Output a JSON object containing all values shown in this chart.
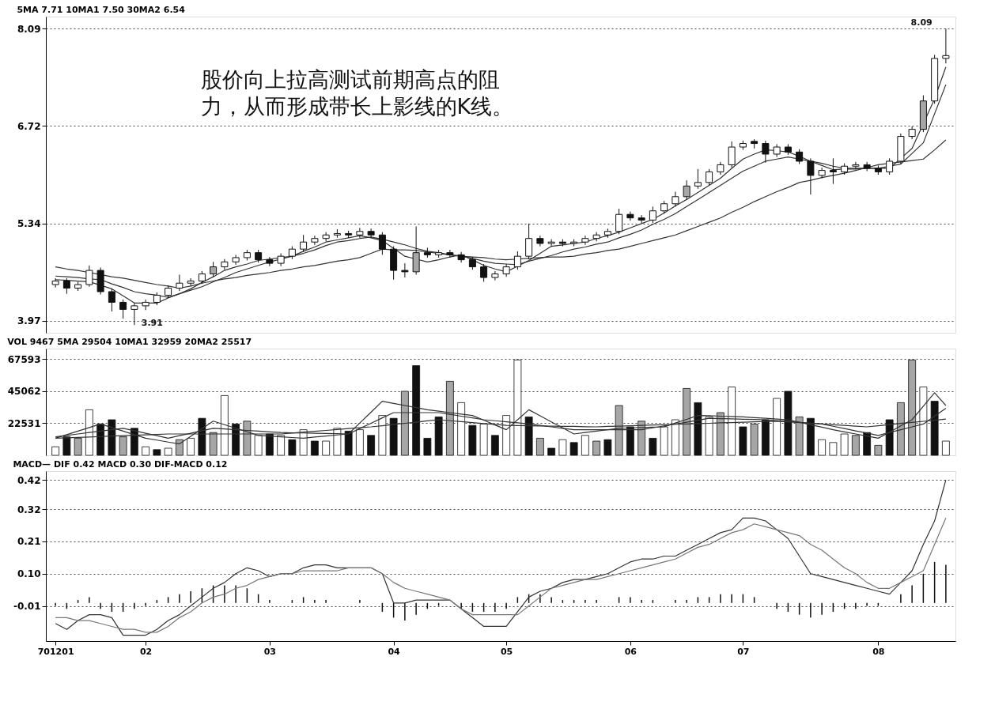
{
  "chart_data": [
    {
      "type": "candlestick",
      "title": "5MA 7.71  10MA1 7.50  30MA2 6.54",
      "categories": [
        "701201",
        null,
        null,
        null,
        null,
        null,
        null,
        null,
        "02",
        null,
        null,
        null,
        null,
        null,
        null,
        null,
        null,
        null,
        null,
        "03",
        null,
        null,
        null,
        null,
        null,
        null,
        null,
        null,
        null,
        null,
        "04",
        null,
        null,
        null,
        null,
        null,
        null,
        null,
        null,
        null,
        "05",
        null,
        null,
        null,
        null,
        null,
        null,
        null,
        null,
        null,
        null,
        "06",
        null,
        null,
        null,
        null,
        null,
        null,
        null,
        null,
        null,
        "07",
        null,
        null,
        null,
        null,
        null,
        null,
        null,
        null,
        null,
        null,
        null,
        "08",
        null,
        null,
        null,
        null,
        null,
        null
      ],
      "ohlc": [
        [
          4.48,
          4.57,
          4.44,
          4.53
        ],
        [
          4.53,
          4.57,
          4.35,
          4.43
        ],
        [
          4.43,
          4.52,
          4.39,
          4.48
        ],
        [
          4.48,
          4.75,
          4.45,
          4.68
        ],
        [
          4.68,
          4.72,
          4.34,
          4.38
        ],
        [
          4.38,
          4.42,
          4.1,
          4.23
        ],
        [
          4.23,
          4.27,
          4.0,
          4.13
        ],
        [
          4.13,
          4.22,
          3.91,
          4.18
        ],
        [
          4.18,
          4.27,
          4.12,
          4.23
        ],
        [
          4.23,
          4.37,
          4.19,
          4.33
        ],
        [
          4.33,
          4.47,
          4.29,
          4.43
        ],
        [
          4.43,
          4.62,
          4.39,
          4.5
        ],
        [
          4.5,
          4.57,
          4.46,
          4.53
        ],
        [
          4.53,
          4.67,
          4.49,
          4.63
        ],
        [
          4.63,
          4.8,
          4.59,
          4.73
        ],
        [
          4.73,
          4.84,
          4.69,
          4.8
        ],
        [
          4.8,
          4.9,
          4.76,
          4.86
        ],
        [
          4.86,
          4.97,
          4.82,
          4.93
        ],
        [
          4.93,
          4.97,
          4.79,
          4.83
        ],
        [
          4.83,
          4.87,
          4.74,
          4.78
        ],
        [
          4.78,
          4.92,
          4.74,
          4.88
        ],
        [
          4.88,
          5.02,
          4.84,
          4.98
        ],
        [
          4.98,
          5.18,
          4.94,
          5.08
        ],
        [
          5.08,
          5.17,
          5.04,
          5.13
        ],
        [
          5.13,
          5.22,
          5.09,
          5.18
        ],
        [
          5.18,
          5.26,
          5.14,
          5.2
        ],
        [
          5.2,
          5.24,
          5.14,
          5.18
        ],
        [
          5.18,
          5.28,
          5.14,
          5.23
        ],
        [
          5.23,
          5.27,
          5.14,
          5.18
        ],
        [
          5.18,
          5.22,
          4.9,
          4.98
        ],
        [
          4.98,
          5.02,
          4.55,
          4.68
        ],
        [
          4.68,
          4.78,
          4.58,
          4.66
        ],
        [
          4.66,
          5.3,
          4.62,
          4.93
        ],
        [
          4.93,
          5.0,
          4.86,
          4.9
        ],
        [
          4.9,
          4.97,
          4.86,
          4.93
        ],
        [
          4.93,
          4.97,
          4.86,
          4.9
        ],
        [
          4.9,
          4.94,
          4.79,
          4.83
        ],
        [
          4.83,
          4.87,
          4.69,
          4.73
        ],
        [
          4.73,
          4.77,
          4.52,
          4.58
        ],
        [
          4.58,
          4.67,
          4.54,
          4.63
        ],
        [
          4.63,
          4.77,
          4.59,
          4.73
        ],
        [
          4.73,
          4.95,
          4.69,
          4.88
        ],
        [
          4.88,
          5.34,
          4.84,
          5.13
        ],
        [
          5.13,
          5.17,
          5.02,
          5.06
        ],
        [
          5.06,
          5.12,
          5.02,
          5.08
        ],
        [
          5.08,
          5.12,
          5.02,
          5.06
        ],
        [
          5.06,
          5.12,
          5.02,
          5.08
        ],
        [
          5.08,
          5.17,
          5.04,
          5.13
        ],
        [
          5.13,
          5.22,
          5.09,
          5.18
        ],
        [
          5.18,
          5.27,
          5.14,
          5.23
        ],
        [
          5.23,
          5.55,
          5.19,
          5.47
        ],
        [
          5.47,
          5.51,
          5.38,
          5.42
        ],
        [
          5.42,
          5.46,
          5.35,
          5.39
        ],
        [
          5.39,
          5.58,
          5.35,
          5.52
        ],
        [
          5.52,
          5.66,
          5.48,
          5.62
        ],
        [
          5.62,
          5.79,
          5.58,
          5.72
        ],
        [
          5.72,
          5.95,
          5.68,
          5.87
        ],
        [
          5.87,
          6.11,
          5.83,
          5.92
        ],
        [
          5.92,
          6.11,
          5.88,
          6.07
        ],
        [
          6.07,
          6.21,
          6.03,
          6.17
        ],
        [
          6.17,
          6.5,
          6.13,
          6.42
        ],
        [
          6.42,
          6.51,
          6.38,
          6.47
        ],
        [
          6.5,
          6.53,
          6.4,
          6.47
        ],
        [
          6.47,
          6.51,
          6.2,
          6.32
        ],
        [
          6.32,
          6.46,
          6.28,
          6.42
        ],
        [
          6.42,
          6.46,
          6.31,
          6.35
        ],
        [
          6.35,
          6.39,
          6.18,
          6.22
        ],
        [
          6.22,
          6.26,
          5.75,
          6.02
        ],
        [
          6.02,
          6.13,
          5.98,
          6.09
        ],
        [
          6.09,
          6.26,
          5.9,
          6.07
        ],
        [
          6.07,
          6.19,
          6.03,
          6.15
        ],
        [
          6.15,
          6.21,
          6.11,
          6.17
        ],
        [
          6.17,
          6.21,
          6.08,
          6.12
        ],
        [
          6.12,
          6.16,
          6.03,
          6.07
        ],
        [
          6.07,
          6.26,
          6.03,
          6.22
        ],
        [
          6.22,
          6.61,
          6.18,
          6.57
        ],
        [
          6.57,
          6.71,
          6.53,
          6.67
        ],
        [
          6.67,
          7.15,
          6.63,
          7.07
        ],
        [
          7.07,
          7.72,
          7.03,
          7.67
        ],
        [
          7.67,
          8.09,
          7.6,
          7.71
        ]
      ],
      "colors": [
        "#ffffff",
        "#111111",
        "#ffffff",
        "#ffffff",
        "#111111",
        "#111111",
        "#111111",
        "#ffffff",
        "#ffffff",
        "#ffffff",
        "#ffffff",
        "#ffffff",
        "#ffffff",
        "#ffffff",
        "#a6a6a6",
        "#ffffff",
        "#ffffff",
        "#ffffff",
        "#111111",
        "#111111",
        "#ffffff",
        "#ffffff",
        "#ffffff",
        "#ffffff",
        "#ffffff",
        "#ffffff",
        "#111111",
        "#ffffff",
        "#111111",
        "#111111",
        "#111111",
        "#111111",
        "#a6a6a6",
        "#111111",
        "#ffffff",
        "#111111",
        "#111111",
        "#111111",
        "#111111",
        "#ffffff",
        "#ffffff",
        "#ffffff",
        "#ffffff",
        "#111111",
        "#ffffff",
        "#111111",
        "#ffffff",
        "#ffffff",
        "#ffffff",
        "#ffffff",
        "#ffffff",
        "#111111",
        "#111111",
        "#ffffff",
        "#ffffff",
        "#ffffff",
        "#a6a6a6",
        "#ffffff",
        "#ffffff",
        "#ffffff",
        "#ffffff",
        "#ffffff",
        "#111111",
        "#111111",
        "#ffffff",
        "#111111",
        "#111111",
        "#111111",
        "#ffffff",
        "#111111",
        "#ffffff",
        "#ffffff",
        "#111111",
        "#111111",
        "#ffffff",
        "#ffffff",
        "#ffffff",
        "#a6a6a6",
        "#ffffff",
        "#ffffff"
      ],
      "series": [
        {
          "type": "line",
          "color": "#333333",
          "values": [
            4.55,
            4.54,
            4.53,
            4.52,
            4.47,
            4.42,
            4.32,
            4.22,
            4.22,
            4.22,
            4.29,
            4.35,
            4.42,
            4.51,
            4.59,
            4.68,
            4.73,
            4.77,
            4.82,
            4.84,
            4.86,
            4.88,
            4.95,
            5.01,
            5.08,
            5.11,
            5.14,
            5.17,
            5.14,
            5.1,
            4.99,
            4.88,
            4.84,
            4.8,
            4.83,
            4.87,
            4.9,
            4.83,
            4.75,
            4.7,
            4.66,
            4.74,
            4.82,
            4.92,
            5.02,
            5.04,
            5.06,
            5.08,
            5.13,
            5.17,
            5.22,
            5.28,
            5.34,
            5.4,
            5.49,
            5.59,
            5.68,
            5.78,
            5.88,
            5.98,
            6.12,
            6.25,
            6.32,
            6.38,
            6.37,
            6.35,
            6.29,
            6.22,
            6.16,
            6.1,
            6.11,
            6.11,
            6.12,
            6.12,
            6.12,
            6.26,
            6.4,
            6.75,
            7.1,
            7.55
          ]
        },
        {
          "type": "line",
          "color": "#333333",
          "values": [
            4.6,
            4.59,
            4.58,
            4.56,
            4.55,
            4.49,
            4.44,
            4.38,
            4.35,
            4.33,
            4.3,
            4.35,
            4.4,
            4.45,
            4.52,
            4.58,
            4.65,
            4.7,
            4.75,
            4.8,
            4.84,
            4.88,
            4.92,
            4.97,
            5.03,
            5.08,
            5.1,
            5.13,
            5.15,
            5.12,
            5.08,
            5.04,
            4.99,
            4.95,
            4.93,
            4.9,
            4.88,
            4.85,
            4.81,
            4.78,
            4.77,
            4.76,
            4.81,
            4.85,
            4.89,
            4.94,
            4.98,
            5.01,
            5.05,
            5.08,
            5.14,
            5.19,
            5.25,
            5.33,
            5.4,
            5.48,
            5.58,
            5.68,
            5.78,
            5.88,
            5.98,
            6.08,
            6.15,
            6.22,
            6.25,
            6.28,
            6.25,
            6.22,
            6.19,
            6.15,
            6.12,
            6.12,
            6.12,
            6.12,
            6.15,
            6.18,
            6.33,
            6.48,
            6.89,
            7.3
          ]
        },
        {
          "type": "line",
          "color": "#333333",
          "values": [
            4.73,
            4.7,
            4.68,
            4.65,
            4.62,
            4.59,
            4.57,
            4.54,
            4.51,
            4.48,
            4.46,
            4.43,
            4.46,
            4.5,
            4.53,
            4.56,
            4.58,
            4.61,
            4.63,
            4.65,
            4.68,
            4.7,
            4.73,
            4.75,
            4.78,
            4.81,
            4.83,
            4.86,
            4.92,
            4.98,
            4.97,
            4.97,
            4.96,
            4.94,
            4.92,
            4.9,
            4.88,
            4.87,
            4.86,
            4.84,
            4.83,
            4.84,
            4.85,
            4.86,
            4.87,
            4.87,
            4.88,
            4.91,
            4.93,
            4.96,
            4.98,
            5.02,
            5.06,
            5.1,
            5.14,
            5.18,
            5.24,
            5.3,
            5.36,
            5.42,
            5.5,
            5.57,
            5.65,
            5.72,
            5.79,
            5.85,
            5.92,
            5.95,
            5.99,
            6.02,
            6.05,
            6.09,
            6.13,
            6.17,
            6.19,
            6.21,
            6.23,
            6.25,
            6.38,
            6.52
          ]
        }
      ],
      "ylim": [
        3.8,
        8.26
      ],
      "yticks": [
        3.97,
        5.34,
        6.72,
        8.09
      ],
      "grid": "y",
      "tick_labels": "y",
      "annotations": [
        "股价向上拉高测试前期高点的阻力，从而形成带长上影线的K线。",
        "8.09",
        "3.91"
      ]
    },
    {
      "type": "bar",
      "title": "VOL 9467  5MA 29504  10MA1 32959  20MA2 25517",
      "categories": [
        "701201",
        null,
        null,
        null,
        null,
        null,
        null,
        null,
        "02",
        null,
        null,
        null,
        null,
        null,
        null,
        null,
        null,
        null,
        null,
        "03",
        null,
        null,
        null,
        null,
        null,
        null,
        null,
        null,
        null,
        null,
        "04",
        null,
        null,
        null,
        null,
        null,
        null,
        null,
        null,
        null,
        "05",
        null,
        null,
        null,
        null,
        null,
        null,
        null,
        null,
        null,
        null,
        "06",
        null,
        null,
        null,
        null,
        null,
        null,
        null,
        null,
        null,
        "07",
        null,
        null,
        null,
        null,
        null,
        null,
        null,
        null,
        null,
        null,
        null,
        "08",
        null,
        null,
        null,
        null,
        null,
        null
      ],
      "values": [
        6000,
        13000,
        12000,
        32000,
        22000,
        25000,
        13000,
        19000,
        6000,
        4000,
        5000,
        11000,
        12000,
        26000,
        16000,
        42000,
        22000,
        24000,
        14000,
        15000,
        14000,
        11000,
        18000,
        10000,
        10000,
        19000,
        17000,
        18000,
        14000,
        28000,
        26000,
        45000,
        63000,
        12000,
        27000,
        52000,
        37000,
        21000,
        22000,
        14000,
        28000,
        67000,
        27000,
        12000,
        5000,
        11000,
        9000,
        14000,
        10000,
        11000,
        35000,
        20000,
        24000,
        12000,
        20000,
        25000,
        47000,
        37000,
        27000,
        30000,
        48000,
        20000,
        22000,
        25000,
        40000,
        45000,
        27000,
        26000,
        11000,
        9000,
        15000,
        14000,
        16000,
        7000,
        25000,
        37000,
        67000,
        48000,
        38000,
        10000
      ],
      "colors": [
        "#ffffff",
        "#111111",
        "#a6a6a6",
        "#ffffff",
        "#111111",
        "#111111",
        "#a6a6a6",
        "#111111",
        "#ffffff",
        "#111111",
        "#ffffff",
        "#a6a6a6",
        "#ffffff",
        "#111111",
        "#a6a6a6",
        "#ffffff",
        "#111111",
        "#a6a6a6",
        "#ffffff",
        "#111111",
        "#ffffff",
        "#111111",
        "#ffffff",
        "#111111",
        "#ffffff",
        "#ffffff",
        "#111111",
        "#ffffff",
        "#111111",
        "#ffffff",
        "#111111",
        "#a6a6a6",
        "#111111",
        "#111111",
        "#111111",
        "#a6a6a6",
        "#ffffff",
        "#111111",
        "#ffffff",
        "#111111",
        "#ffffff",
        "#ffffff",
        "#111111",
        "#a6a6a6",
        "#111111",
        "#ffffff",
        "#111111",
        "#ffffff",
        "#a6a6a6",
        "#111111",
        "#a6a6a6",
        "#111111",
        "#a6a6a6",
        "#111111",
        "#ffffff",
        "#ffffff",
        "#a6a6a6",
        "#111111",
        "#ffffff",
        "#a6a6a6",
        "#ffffff",
        "#111111",
        "#a6a6a6",
        "#111111",
        "#ffffff",
        "#111111",
        "#a6a6a6",
        "#111111",
        "#ffffff",
        "#ffffff",
        "#ffffff",
        "#a6a6a6",
        "#111111",
        "#a6a6a6",
        "#111111",
        "#a6a6a6",
        "#a6a6a6",
        "#ffffff",
        "#111111",
        "#ffffff"
      ],
      "series": [
        {
          "type": "line",
          "color": "#333333",
          "values": [
            12000,
            14500,
            17000,
            19500,
            22000,
            19500,
            17000,
            14500,
            12000,
            10700,
            9300,
            8000,
            13300,
            18700,
            24000,
            21500,
            19000,
            16500,
            14000,
            13500,
            13000,
            12500,
            12000,
            12800,
            13500,
            14300,
            15000,
            22700,
            30300,
            38000,
            36500,
            35000,
            33500,
            32000,
            31000,
            30000,
            29000,
            28000,
            24700,
            21300,
            18000,
            25000,
            32000,
            27800,
            23500,
            19300,
            15000,
            16000,
            17000,
            18000,
            19000,
            19300,
            19500,
            19800,
            20000,
            22700,
            25300,
            28000,
            27800,
            27500,
            27300,
            27000,
            26500,
            26000,
            25500,
            25000,
            23300,
            21500,
            19800,
            18000,
            16500,
            15000,
            13500,
            12000,
            16300,
            20700,
            25000,
            34500,
            44000,
            35000
          ]
        },
        {
          "type": "line",
          "color": "#333333",
          "values": [
            13000,
            14000,
            15000,
            16000,
            17000,
            18000,
            19000,
            17300,
            15500,
            13800,
            12000,
            13800,
            15500,
            17300,
            19000,
            18500,
            18000,
            17500,
            17000,
            16500,
            16000,
            15800,
            15700,
            15500,
            15300,
            15200,
            15000,
            18800,
            22500,
            26300,
            30000,
            30000,
            30000,
            30000,
            30000,
            28800,
            27500,
            26300,
            25000,
            24300,
            23500,
            22800,
            22000,
            21000,
            20000,
            19000,
            18000,
            18000,
            18000,
            18000,
            18000,
            18000,
            18000,
            19300,
            20700,
            22000,
            23300,
            24700,
            26000,
            25800,
            25600,
            25400,
            25200,
            25000,
            24400,
            23800,
            23200,
            22600,
            22000,
            20400,
            18800,
            17200,
            15600,
            14000,
            16000,
            18000,
            20000,
            22000,
            27500,
            33000
          ]
        },
        {
          "type": "line",
          "color": "#333333",
          "values": [
            12000,
            12300,
            12600,
            12900,
            13200,
            13500,
            13800,
            14100,
            14400,
            14700,
            15000,
            15000,
            15000,
            15000,
            15000,
            15000,
            15000,
            15000,
            15000,
            15000,
            15000,
            15600,
            16300,
            16900,
            17500,
            18100,
            18800,
            19400,
            20000,
            20800,
            21700,
            22500,
            23300,
            24200,
            25000,
            24300,
            23700,
            23000,
            22300,
            21700,
            21000,
            20900,
            20800,
            20600,
            20500,
            20400,
            20300,
            20100,
            20000,
            20300,
            20500,
            20800,
            21000,
            21300,
            21500,
            21800,
            22000,
            22300,
            22500,
            22800,
            23000,
            23300,
            23500,
            23800,
            24000,
            23500,
            23000,
            22500,
            22000,
            21500,
            21000,
            20500,
            20000,
            20800,
            21600,
            22400,
            23100,
            23900,
            24700,
            25500
          ]
        }
      ],
      "ylim": [
        0,
        75000
      ],
      "yticks": [
        22531,
        45062,
        67593
      ],
      "grid": "y",
      "tick_labels": "y"
    },
    {
      "type": "line",
      "title": "MACD— DIF 0.42  MACD 0.30  DIF-MACD 0.12",
      "categories": [
        "701201",
        null,
        null,
        null,
        null,
        null,
        null,
        null,
        "02",
        null,
        null,
        null,
        null,
        null,
        null,
        null,
        null,
        null,
        null,
        "03",
        null,
        null,
        null,
        null,
        null,
        null,
        null,
        null,
        null,
        null,
        "04",
        null,
        null,
        null,
        null,
        null,
        null,
        null,
        null,
        null,
        "05",
        null,
        null,
        null,
        null,
        null,
        null,
        null,
        null,
        null,
        null,
        "06",
        null,
        null,
        null,
        null,
        null,
        null,
        null,
        null,
        null,
        "07",
        null,
        null,
        null,
        null,
        null,
        null,
        null,
        null,
        null,
        null,
        null,
        "08",
        null,
        null,
        null,
        null,
        null,
        null
      ],
      "series": [
        {
          "type": "bar",
          "color": "#111111",
          "values": [
            -0.01,
            -0.02,
            0.01,
            0.02,
            -0.02,
            -0.03,
            -0.03,
            -0.02,
            -0.01,
            0.01,
            0.02,
            0.03,
            0.04,
            0.05,
            0.06,
            0.06,
            0.06,
            0.05,
            0.03,
            0.01,
            0.0,
            0.01,
            0.02,
            0.01,
            0.01,
            0.0,
            0.0,
            0.01,
            0.0,
            -0.03,
            -0.05,
            -0.06,
            -0.04,
            -0.02,
            -0.01,
            0.0,
            -0.02,
            -0.03,
            -0.03,
            -0.03,
            -0.02,
            0.02,
            0.03,
            0.03,
            0.02,
            0.01,
            0.01,
            0.01,
            0.01,
            0.0,
            0.02,
            0.02,
            0.01,
            0.01,
            0.0,
            0.01,
            0.01,
            0.02,
            0.02,
            0.03,
            0.03,
            0.03,
            0.02,
            0.0,
            -0.02,
            -0.03,
            -0.04,
            -0.05,
            -0.04,
            -0.03,
            -0.02,
            -0.02,
            -0.01,
            -0.01,
            0.0,
            0.03,
            0.06,
            0.1,
            0.14,
            0.13
          ]
        },
        {
          "type": "line",
          "color": "#333333",
          "values": [
            -0.07,
            -0.09,
            -0.06,
            -0.04,
            -0.04,
            -0.05,
            -0.11,
            -0.11,
            -0.11,
            -0.09,
            -0.06,
            -0.04,
            -0.01,
            0.02,
            0.05,
            0.07,
            0.1,
            0.12,
            0.11,
            0.09,
            0.1,
            0.1,
            0.12,
            0.13,
            0.13,
            0.12,
            0.12,
            0.12,
            0.12,
            0.1,
            0.0,
            0.0,
            0.01,
            0.01,
            0.01,
            0.01,
            -0.02,
            -0.05,
            -0.08,
            -0.08,
            -0.08,
            -0.03,
            0.02,
            0.04,
            0.05,
            0.07,
            0.08,
            0.08,
            0.09,
            0.1,
            0.12,
            0.14,
            0.15,
            0.15,
            0.16,
            0.16,
            0.18,
            0.2,
            0.22,
            0.24,
            0.25,
            0.29,
            0.29,
            0.28,
            0.25,
            0.22,
            0.16,
            0.1,
            0.09,
            0.08,
            0.07,
            0.06,
            0.05,
            0.04,
            0.03,
            0.07,
            0.11,
            0.2,
            0.28,
            0.42
          ]
        },
        {
          "type": "line",
          "color": "#777777",
          "values": [
            -0.05,
            -0.05,
            -0.06,
            -0.06,
            -0.07,
            -0.08,
            -0.09,
            -0.09,
            -0.1,
            -0.1,
            -0.08,
            -0.05,
            -0.03,
            0.0,
            0.02,
            0.03,
            0.05,
            0.06,
            0.08,
            0.09,
            0.1,
            0.1,
            0.11,
            0.11,
            0.11,
            0.11,
            0.12,
            0.12,
            0.12,
            0.1,
            0.07,
            0.05,
            0.04,
            0.03,
            0.02,
            0.01,
            -0.02,
            -0.04,
            -0.04,
            -0.04,
            -0.04,
            -0.04,
            -0.01,
            0.02,
            0.05,
            0.06,
            0.07,
            0.08,
            0.08,
            0.09,
            0.1,
            0.11,
            0.12,
            0.13,
            0.14,
            0.15,
            0.17,
            0.19,
            0.2,
            0.22,
            0.24,
            0.25,
            0.27,
            0.26,
            0.25,
            0.24,
            0.23,
            0.2,
            0.18,
            0.15,
            0.12,
            0.1,
            0.07,
            0.05,
            0.05,
            0.07,
            0.09,
            0.11,
            0.2,
            0.29
          ]
        }
      ],
      "ylim": [
        -0.13,
        0.45
      ],
      "yticks": [
        -0.01,
        {
          "value": 0.1,
          "label": "0.10"
        },
        0.21,
        0.32,
        0.42
      ],
      "grid": "y"
    }
  ]
}
